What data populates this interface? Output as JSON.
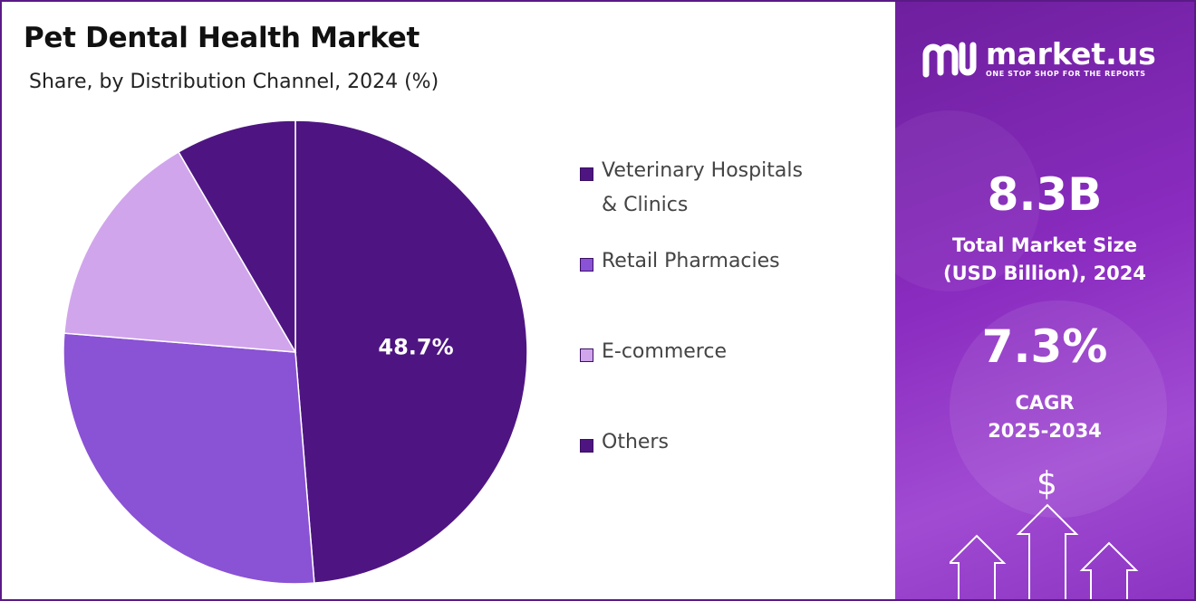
{
  "header": {
    "title": "Pet Dental Health Market",
    "subtitle": "Share, by Distribution Channel, 2024 (%)"
  },
  "chart_data": {
    "type": "pie",
    "categories": [
      "Veterinary Hospitals & Clinics",
      "Retail Pharmacies",
      "E-commerce",
      "Others"
    ],
    "values": [
      48.7,
      27.6,
      15.3,
      8.4
    ],
    "colors": [
      "#4e1582",
      "#8a52d4",
      "#d1a5ec",
      "#4e1582"
    ],
    "data_labels": [
      "48.7%",
      "",
      "",
      ""
    ],
    "legend": "right"
  },
  "legend": {
    "items": [
      {
        "line1": "Veterinary Hospitals",
        "line2": "& Clinics"
      },
      {
        "line1": "Retail Pharmacies",
        "line2": ""
      },
      {
        "line1": "E-commerce",
        "line2": ""
      },
      {
        "line1": "Others",
        "line2": ""
      }
    ]
  },
  "brand": {
    "name": "market.us",
    "tagline": "ONE STOP SHOP FOR THE REPORTS",
    "icon": "market-us-logo-icon"
  },
  "stats": {
    "market_size_value": "8.3B",
    "market_size_label_1": "Total Market Size",
    "market_size_label_2": "(USD Billion), 2024",
    "cagr_value": "7.3%",
    "cagr_label_1": "CAGR",
    "cagr_label_2": "2025-2034",
    "dollar_symbol": "$"
  }
}
